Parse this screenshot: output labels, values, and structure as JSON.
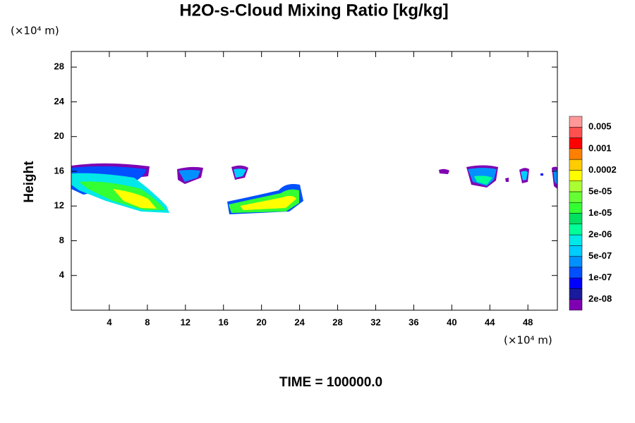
{
  "chart_data": {
    "type": "contour",
    "title": "H2O-s-Cloud Mixing Ratio [kg/kg]",
    "y_label": "Height",
    "y_unit": "(×10⁴ m)",
    "x_unit": "(×10⁴ m)",
    "footer": "TIME = 100000.0",
    "xlim": [
      0,
      51.1
    ],
    "xticks": [
      4,
      8,
      12,
      16,
      20,
      24,
      28,
      32,
      36,
      40,
      44,
      48
    ],
    "ylim": [
      0,
      29.8
    ],
    "yticks": [
      4,
      8,
      12,
      16,
      20,
      24,
      28
    ],
    "colorbar": {
      "colors": [
        "#7f00b2",
        "#1a1a9c",
        "#0000ff",
        "#0050ff",
        "#0090ff",
        "#00ccff",
        "#00e8e8",
        "#00ff99",
        "#00e060",
        "#33ff33",
        "#66ff33",
        "#aaff33",
        "#ffff00",
        "#ffcc00",
        "#ff8000",
        "#ff0000",
        "#ff5050",
        "#ff9999"
      ],
      "ticks": [
        {
          "value": 2e-08,
          "label": "2e-08"
        },
        {
          "value": 1e-07,
          "label": "1e-07"
        },
        {
          "value": 5e-07,
          "label": "5e-07"
        },
        {
          "value": 2e-06,
          "label": "2e-06"
        },
        {
          "value": 1e-05,
          "label": "1e-05"
        },
        {
          "value": 5e-05,
          "label": "5e-05"
        },
        {
          "value": 0.0002,
          "label": "0.0002"
        },
        {
          "value": 0.001,
          "label": "0.001"
        },
        {
          "value": 0.005,
          "label": "0.005"
        }
      ]
    }
  }
}
